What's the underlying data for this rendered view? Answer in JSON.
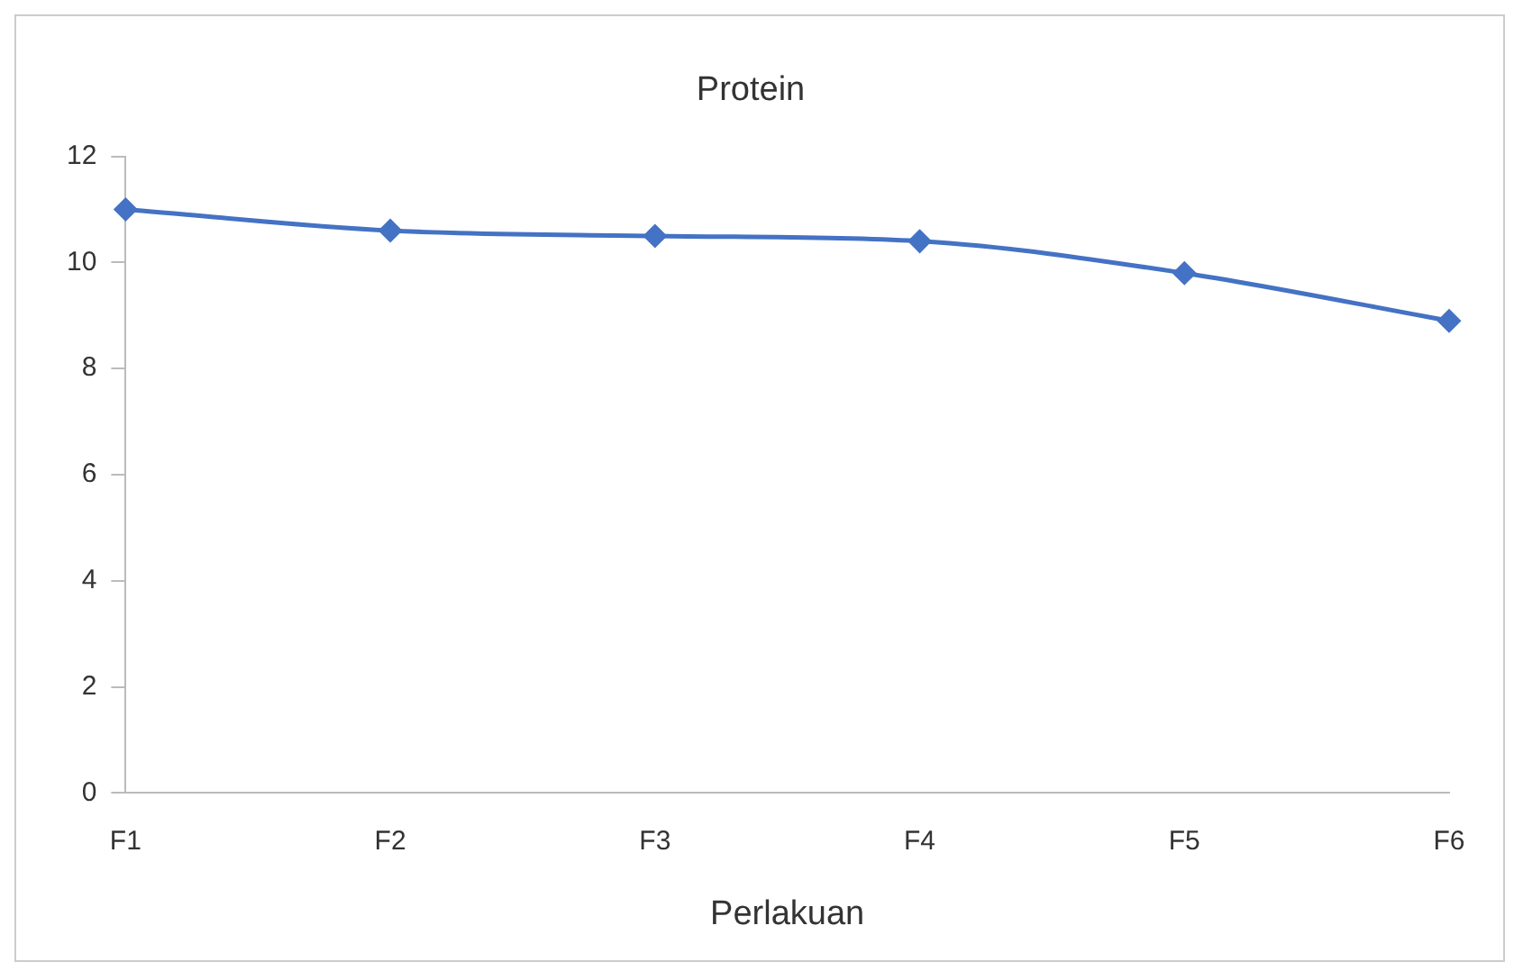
{
  "chart_data": {
    "type": "line",
    "title": "Protein",
    "xlabel": "Perlakuan",
    "categories": [
      "F1",
      "F2",
      "F3",
      "F4",
      "F5",
      "F6"
    ],
    "series": [
      {
        "color": "#4472c4",
        "values": [
          11.0,
          10.6,
          10.5,
          10.4,
          9.8,
          8.9
        ]
      }
    ],
    "ylim": [
      0,
      12
    ],
    "yticks": [
      0,
      2,
      4,
      6,
      8,
      10,
      12
    ],
    "grid": false,
    "legend": false,
    "marker": "diamond",
    "line_style": "solid"
  }
}
